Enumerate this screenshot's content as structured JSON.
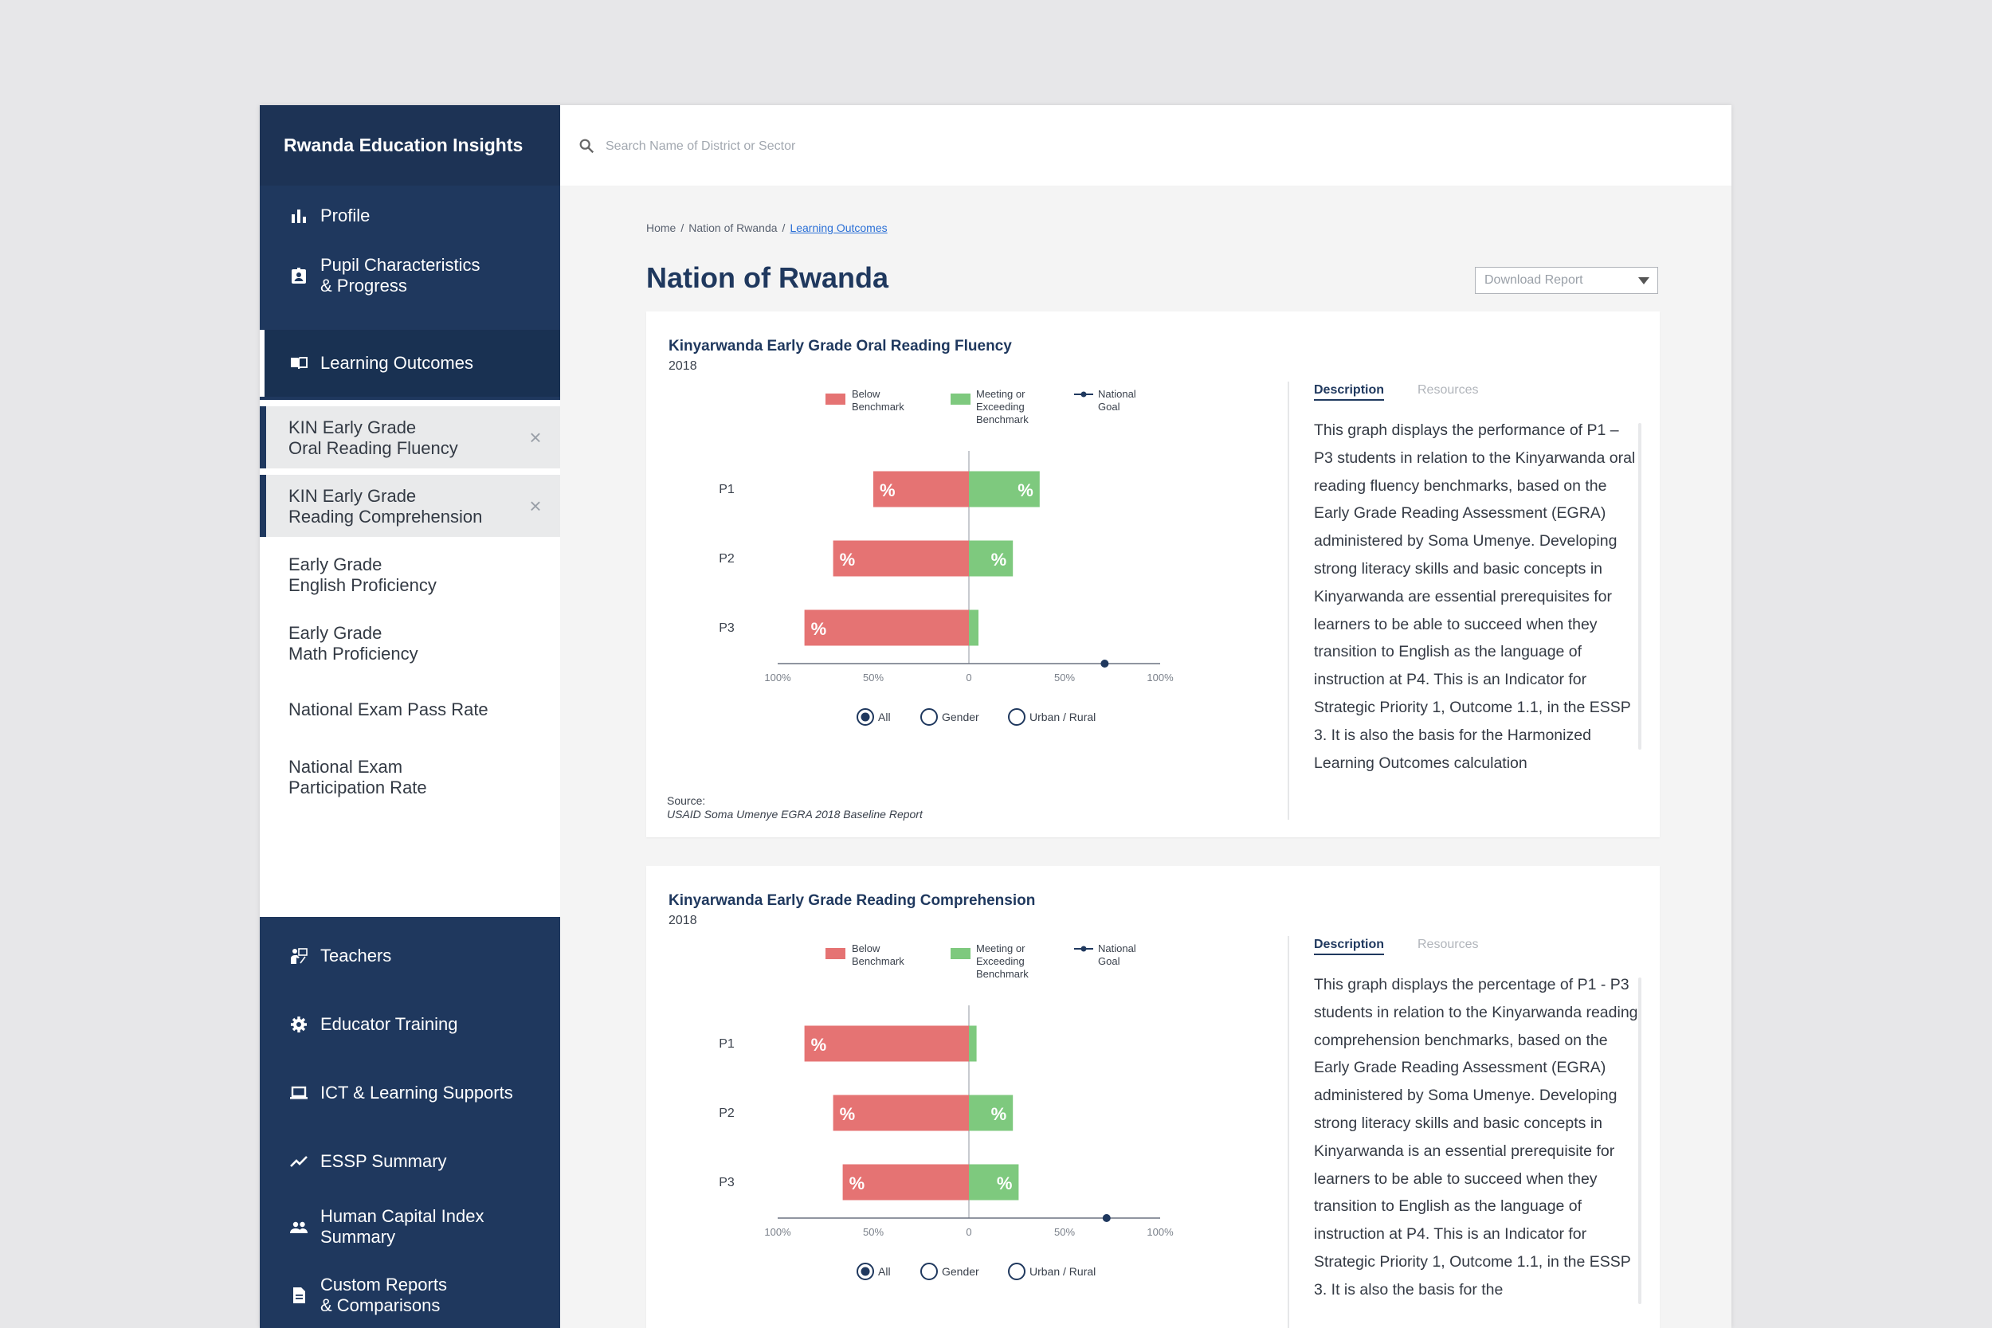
{
  "app": {
    "title": "Rwanda Education Insights"
  },
  "search": {
    "placeholder": "Search Name of District or Sector"
  },
  "topbar_icons": [
    "chat-icon",
    "help-icon",
    "language-toggle-icon"
  ],
  "sidebar": {
    "items": [
      {
        "label": "Profile",
        "icon": "bar-chart-icon"
      },
      {
        "label": "Pupil Characteristics\n& Progress",
        "icon": "id-badge-icon"
      },
      {
        "label": "Learning Outcomes",
        "icon": "open-book-icon",
        "active": true
      },
      {
        "label": "Teachers",
        "icon": "teacher-icon"
      },
      {
        "label": "Educator Training",
        "icon": "gear-icon"
      },
      {
        "label": "ICT & Learning Supports",
        "icon": "laptop-icon"
      },
      {
        "label": "ESSP Summary",
        "icon": "trend-icon"
      },
      {
        "label": "Human Capital Index\nSummary",
        "icon": "people-icon"
      },
      {
        "label": "Custom Reports\n& Comparisons",
        "icon": "document-icon"
      }
    ],
    "subitems": [
      {
        "label": "KIN Early Grade\nOral Reading Fluency",
        "selected": true
      },
      {
        "label": "KIN Early Grade\nReading Comprehension",
        "selected": true
      },
      {
        "label": "Early Grade\nEnglish Proficiency"
      },
      {
        "label": "Early Grade\nMath Proficiency"
      },
      {
        "label": "National Exam Pass Rate"
      },
      {
        "label": "National Exam\nParticipation Rate"
      }
    ]
  },
  "breadcrumb": {
    "home": "Home",
    "nation": "Nation of Rwanda",
    "current": "Learning Outcomes"
  },
  "page": {
    "title": "Nation of Rwanda",
    "download_label": "Download Report"
  },
  "colors": {
    "navy": "#1f385e",
    "below": "#e57373",
    "meeting": "#7ec97e"
  },
  "cards": [
    {
      "title": "Kinyarwanda Early Grade Oral Reading Fluency",
      "year": "2018",
      "tabs": {
        "description": "Description",
        "resources": "Resources"
      },
      "description": "This graph displays the performance of P1 – P3 students in relation to the Kinyarwanda oral reading fluency benchmarks, based on the Early Grade Reading Assessment (EGRA) administered by Soma Umenye. Developing strong literacy skills and basic concepts in Kinyarwanda are essential prerequisites for learners to be able to succeed when they transition to English as the language of instruction at P4. This is an Indicator for Strategic Priority 1, Outcome 1.1, in the ESSP 3.  It is also the basis for the Harmonized Learning Outcomes calculation",
      "source_label": "Source:",
      "source_text": "USAID Soma Umenye EGRA 2018 Baseline Report"
    },
    {
      "title": "Kinyarwanda Early Grade Reading Comprehension",
      "year": "2018",
      "tabs": {
        "description": "Description",
        "resources": "Resources"
      },
      "description": "This graph displays the percentage of P1 - P3 students in relation to the Kinyarwanda reading comprehension benchmarks, based on the Early Grade Reading Assessment (EGRA) administered by Soma Umenye. Developing strong literacy skills and basic concepts in Kinyarwanda is an essential prerequisite for learners to be able to succeed when they transition to English as the language of instruction at P4. This is an Indicator for Strategic Priority 1, Outcome 1.1, in the ESSP 3. It is also the basis for the"
    }
  ],
  "chart_data": [
    {
      "type": "bar",
      "orientation": "horizontal-diverging",
      "categories": [
        "P1",
        "P2",
        "P3"
      ],
      "series": [
        {
          "name": "Below\nBenchmark",
          "values": [
            -0.5,
            -0.71,
            -0.86
          ],
          "color": "#e57373"
        },
        {
          "name": "Meeting or\nExceeding\nBenchmark",
          "values": [
            0.37,
            0.23,
            0.05
          ],
          "color": "#7ec97e"
        }
      ],
      "national_goal": {
        "name": "National\nGoal",
        "value": 0.71
      },
      "bar_label": "%",
      "xticks": [
        "100%",
        "50%",
        "0",
        "50%",
        "100%"
      ],
      "xlim": [
        -1,
        1
      ],
      "legend_position": "top",
      "filters": [
        "All",
        "Gender",
        "Urban / Rural"
      ],
      "selected_filter": "All"
    },
    {
      "type": "bar",
      "orientation": "horizontal-diverging",
      "categories": [
        "P1",
        "P2",
        "P3"
      ],
      "series": [
        {
          "name": "Below\nBenchmark",
          "values": [
            -0.86,
            -0.71,
            -0.66
          ],
          "color": "#e57373"
        },
        {
          "name": "Meeting or\nExceeding\nBenchmark",
          "values": [
            0.04,
            0.23,
            0.26
          ],
          "color": "#7ec97e"
        }
      ],
      "national_goal": {
        "name": "National\nGoal",
        "value": 0.72
      },
      "bar_label": "%",
      "xticks": [
        "100%",
        "50%",
        "0",
        "50%",
        "100%"
      ],
      "xlim": [
        -1,
        1
      ],
      "legend_position": "top",
      "filters": [
        "All",
        "Gender",
        "Urban / Rural"
      ],
      "selected_filter": "All"
    }
  ]
}
